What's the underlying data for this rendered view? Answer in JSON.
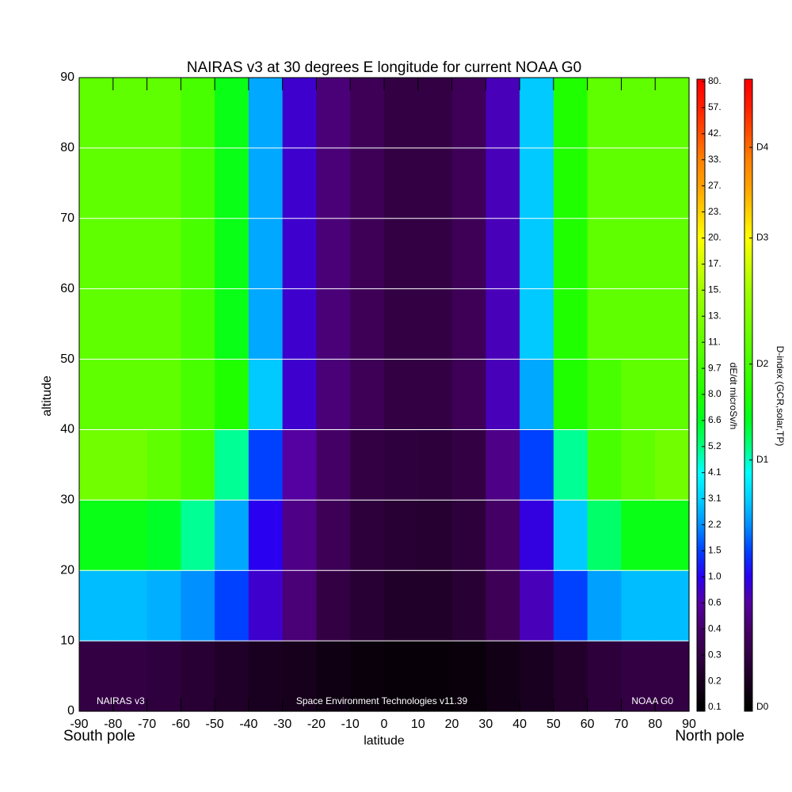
{
  "chart_data": {
    "type": "heatmap",
    "title": "NAIRAS v3 at 30 degrees E longitude for current NOAA G0",
    "xlabel": "latitude",
    "ylabel": "altitude",
    "pole_labels": [
      "South pole",
      "North pole"
    ],
    "annotations": [
      "NAIRAS v3",
      "Space Environment Technologies v11.39",
      "NOAA G0"
    ],
    "xlim": [
      -90,
      90
    ],
    "xticks": [
      -90,
      -80,
      -70,
      -60,
      -50,
      -40,
      -30,
      -20,
      -10,
      0,
      10,
      20,
      30,
      40,
      50,
      60,
      70,
      80,
      90
    ],
    "ylim": [
      0,
      90
    ],
    "yticks": [
      0,
      10,
      20,
      30,
      40,
      50,
      60,
      70,
      80,
      90
    ],
    "grid": true,
    "x": [
      -85,
      -75,
      -65,
      -55,
      -45,
      -35,
      -25,
      -15,
      -5,
      5,
      15,
      25,
      35,
      45,
      55,
      65,
      75,
      85
    ],
    "y": [
      5,
      15,
      25,
      35,
      45,
      55,
      65,
      75,
      85
    ],
    "z": [
      [
        0.3,
        0.3,
        0.28,
        0.25,
        0.22,
        0.2,
        0.18,
        0.15,
        0.13,
        0.12,
        0.12,
        0.13,
        0.16,
        0.2,
        0.23,
        0.27,
        0.3,
        0.3
      ],
      [
        2.8,
        2.8,
        2.6,
        2.2,
        1.5,
        0.8,
        0.45,
        0.3,
        0.25,
        0.22,
        0.22,
        0.25,
        0.35,
        0.7,
        1.5,
        2.4,
        2.8,
        2.8
      ],
      [
        7,
        7,
        6.5,
        5,
        2.5,
        1,
        0.5,
        0.35,
        0.27,
        0.25,
        0.24,
        0.27,
        0.4,
        0.9,
        3,
        5.5,
        7,
        7
      ],
      [
        12,
        12,
        11,
        10,
        5,
        1.5,
        0.6,
        0.4,
        0.3,
        0.28,
        0.27,
        0.3,
        0.5,
        1.5,
        5,
        10,
        11,
        12
      ],
      [
        11,
        11,
        11,
        10,
        8,
        3,
        0.8,
        0.45,
        0.35,
        0.3,
        0.3,
        0.35,
        0.7,
        2.5,
        8,
        10,
        11,
        11
      ],
      [
        11,
        11,
        11,
        10,
        7,
        2.5,
        0.8,
        0.45,
        0.35,
        0.3,
        0.3,
        0.35,
        0.7,
        3,
        8,
        11,
        11,
        11
      ],
      [
        11,
        11,
        11,
        10,
        7,
        2.5,
        0.8,
        0.45,
        0.35,
        0.3,
        0.3,
        0.35,
        0.7,
        3,
        8,
        11,
        11,
        11
      ],
      [
        11,
        11,
        11,
        10,
        7,
        2.5,
        0.8,
        0.45,
        0.35,
        0.3,
        0.3,
        0.35,
        0.7,
        3,
        8,
        11,
        11,
        11
      ],
      [
        11,
        11,
        11,
        10,
        7,
        2.5,
        0.8,
        0.45,
        0.35,
        0.3,
        0.3,
        0.35,
        0.7,
        3,
        8,
        11,
        11,
        11
      ]
    ],
    "colorbar": {
      "label": "dE/dt microSv/h",
      "ticks": [
        0.1,
        0.2,
        0.3,
        0.4,
        0.6,
        {
          "value": 1,
          "label": "1.0"
        },
        1.5,
        2.2,
        3.1,
        4.1,
        5.2,
        6.6,
        {
          "value": 8,
          "label": "8.0"
        },
        9.7,
        {
          "value": 11,
          "label": "11."
        },
        {
          "value": 13,
          "label": "13."
        },
        {
          "value": 15,
          "label": "15."
        },
        {
          "value": 17,
          "label": "17."
        },
        {
          "value": 20,
          "label": "20."
        },
        {
          "value": 23,
          "label": "23."
        },
        {
          "value": 27,
          "label": "27."
        },
        {
          "value": 33,
          "label": "33."
        },
        {
          "value": 42,
          "label": "42."
        },
        {
          "value": 57,
          "label": "57."
        },
        {
          "value": 80,
          "label": "80."
        }
      ],
      "colors": [
        "#000000",
        "#1a0020",
        "#330044",
        "#450066",
        "#5500a0",
        "#2a00f0",
        "#0040ff",
        "#0090ff",
        "#00d0ff",
        "#00ffff",
        "#00ff80",
        "#00ff20",
        "#20ff00",
        "#40ff00",
        "#60ff00",
        "#80ff00",
        "#a0ff00",
        "#d0ff00",
        "#ffff00",
        "#ffd000",
        "#ffa000",
        "#ff8000",
        "#ff5000",
        "#ff2000",
        "#ff0000"
      ]
    },
    "d_index": {
      "label": "D-index (GCR,solar,TP)",
      "ticks": [
        {
          "value": 0.1,
          "label": "D0"
        },
        {
          "value": 4.6,
          "label": "D1"
        },
        {
          "value": 9.9,
          "label": "D2"
        },
        {
          "value": 20,
          "label": "D3"
        },
        {
          "value": 37,
          "label": "D4"
        }
      ]
    }
  }
}
